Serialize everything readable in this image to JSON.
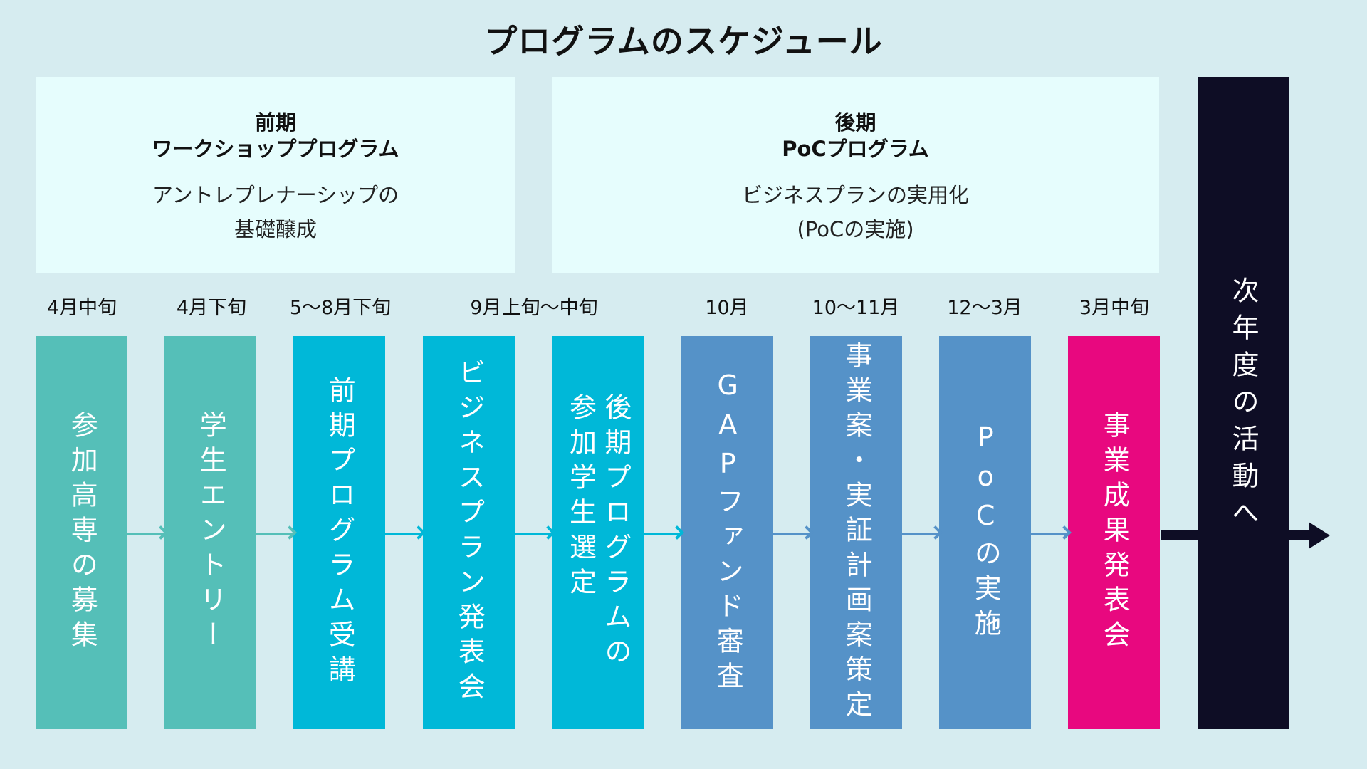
{
  "title": "プログラムのスケジュール",
  "phases": {
    "first": {
      "heading1": "前期",
      "heading2": "ワークショッププログラム",
      "desc1": "アントレプレナーシップの",
      "desc2": "基礎醸成"
    },
    "second": {
      "heading1": "後期",
      "heading2": "PoCプログラム",
      "desc1": "ビジネスプランの実用化",
      "desc2": "(PoCの実施)"
    }
  },
  "dates": [
    "4月中旬",
    "4月下旬",
    "5〜8月下旬",
    "9月上旬〜中旬",
    "10月",
    "10〜11月",
    "12〜3月",
    "3月中旬"
  ],
  "steps": [
    {
      "label": "参加高専の募集",
      "color": "#55bfb8"
    },
    {
      "label": "学生エントリー",
      "color": "#55bfb8"
    },
    {
      "label": "前期プログラム受講",
      "color": "#00b8d8"
    },
    {
      "label": "ビジネスプラン発表会",
      "color": "#00b8d8"
    },
    {
      "label": "後期プログラムの\n参加学生選定",
      "color": "#00b8d8"
    },
    {
      "label": "GAPファンド審査",
      "color": "#5592c8"
    },
    {
      "label": "事業案・実証計画案策定",
      "color": "#5592c8"
    },
    {
      "label": "PoCの実施",
      "color": "#5592c8"
    },
    {
      "label": "事業成果発表会",
      "color": "#e8087f"
    }
  ],
  "next": "次年度の活動へ",
  "colors": {
    "background": "#d6ecf0",
    "phase_box": "#e6fdfd",
    "teal": "#55bfb8",
    "cyan": "#00b8d8",
    "blue": "#5592c8",
    "magenta": "#e8087f",
    "navy": "#0e0d25"
  }
}
